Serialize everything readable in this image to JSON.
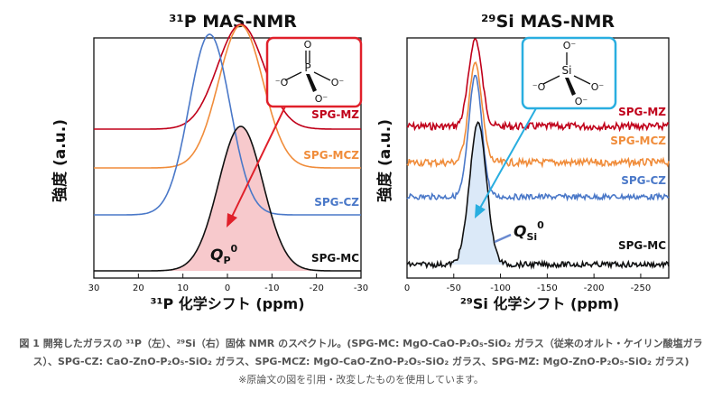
{
  "chart_data": [
    {
      "type": "line",
      "title": "³¹P MAS-NMR",
      "xlabel": "³¹P 化学シフト (ppm)",
      "ylabel": "強度 (a.u.)",
      "xlim": [
        30,
        -30
      ],
      "xticks": [
        "30",
        "20",
        "10",
        "0",
        "-10",
        "-20",
        "-30"
      ],
      "series": [
        {
          "name": "SPG-MZ",
          "color": "#c0001a",
          "center": -3,
          "width": 5.2
        },
        {
          "name": "SPG-MCZ",
          "color": "#f08c3a",
          "center": -3,
          "width": 5.0
        },
        {
          "name": "SPG-CZ",
          "color": "#4a78c8",
          "center": 4,
          "width": 4.6
        },
        {
          "name": "SPG-MC",
          "color": "#111111",
          "center": -3,
          "width": 5.0
        }
      ],
      "inset": {
        "center_atom": "P",
        "ligands": [
          "O",
          "⁻O",
          "O⁻",
          "O⁻"
        ],
        "color": "#e0202a"
      },
      "annotation": {
        "label": "Q",
        "subscript": "P",
        "superscript": "0"
      }
    },
    {
      "type": "line",
      "title": "²⁹Si MAS-NMR",
      "xlabel": "²⁹Si 化学シフト (ppm)",
      "ylabel": "強度 (a.u.)",
      "xlim": [
        0,
        -280
      ],
      "xticks": [
        "0",
        "-50",
        "-100",
        "-150",
        "-200",
        "-250"
      ],
      "series": [
        {
          "name": "SPG-MZ",
          "color": "#c0001a",
          "center": -73,
          "width": 7
        },
        {
          "name": "SPG-MCZ",
          "color": "#f08c3a",
          "center": -73,
          "width": 7
        },
        {
          "name": "SPG-CZ",
          "color": "#4a78c8",
          "center": -73,
          "width": 7
        },
        {
          "name": "SPG-MC",
          "color": "#111111",
          "center": -76,
          "width": 9
        }
      ],
      "inset": {
        "center_atom": "Si",
        "ligands": [
          "O⁻",
          "⁻O",
          "O⁻",
          "O⁻"
        ],
        "color": "#29aee0"
      },
      "annotation": {
        "label": "Q",
        "subscript": "Si",
        "superscript": "0"
      }
    }
  ],
  "caption": {
    "main": "図 1 開発したガラスの ³¹P（左）、²⁹Si（右）固体 NMR のスペクトル。(SPG-MC: MgO-CaO-P₂O₅-SiO₂ ガラス（従来のオルト・ケイリン酸塩ガラス）、SPG-CZ: CaO-ZnO-P₂O₅-SiO₂ ガラス、SPG-MCZ: MgO-CaO-ZnO-P₂O₅-SiO₂ ガラス、SPG-MZ: MgO-ZnO-P₂O₅-SiO₂ ガラス)",
    "note": "※原論文の図を引用・改変したものを使用しています。"
  }
}
